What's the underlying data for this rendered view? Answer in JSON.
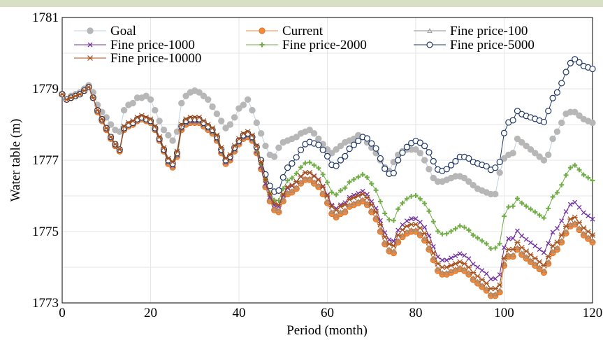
{
  "chart_data": {
    "type": "line",
    "title": "",
    "xlabel": "Period (month)",
    "ylabel": "Water table (m)",
    "xlim": [
      0,
      120
    ],
    "ylim": [
      1773,
      1781
    ],
    "xticks": [
      0,
      20,
      40,
      60,
      80,
      100,
      120
    ],
    "yticks": [
      1773,
      1775,
      1777,
      1779,
      1781
    ],
    "grid": true,
    "legend_position": "top",
    "colors": {
      "Goal": "#b7b7b7",
      "Current": "#f08a3c",
      "Fine price-100": "#8c8c8c",
      "Fine price-1000": "#7030a0",
      "Fine price-2000": "#70ad47",
      "Fine price-5000": "#1f3864",
      "Fine price-10000": "#a5501c"
    },
    "x_step": 1,
    "series": [
      {
        "name": "Goal",
        "values": [
          1778.85,
          1778.7,
          1778.8,
          1778.85,
          1778.9,
          1779.0,
          1779.1,
          1778.9,
          1778.55,
          1778.35,
          1778.2,
          1778.0,
          1777.85,
          1777.8,
          1778.4,
          1778.55,
          1778.6,
          1778.75,
          1778.75,
          1778.8,
          1778.7,
          1778.4,
          1778.1,
          1777.85,
          1777.7,
          1777.55,
          1777.8,
          1778.6,
          1778.8,
          1778.9,
          1778.95,
          1778.9,
          1778.8,
          1778.7,
          1778.5,
          1778.3,
          1778.1,
          1777.9,
          1778.0,
          1778.2,
          1778.45,
          1778.55,
          1778.7,
          1778.4,
          1778.05,
          1777.75,
          1777.4,
          1777.15,
          1777.1,
          1777.35,
          1777.5,
          1777.55,
          1777.6,
          1777.65,
          1777.75,
          1777.8,
          1777.85,
          1777.75,
          1777.6,
          1777.45,
          1777.3,
          1777.2,
          1777.3,
          1777.4,
          1777.5,
          1777.55,
          1777.6,
          1777.7,
          1777.65,
          1777.5,
          1777.35,
          1777.2,
          1777.0,
          1776.8,
          1776.7,
          1776.95,
          1777.15,
          1777.25,
          1777.3,
          1777.3,
          1777.3,
          1777.2,
          1777.0,
          1776.75,
          1776.5,
          1776.4,
          1776.4,
          1776.45,
          1776.5,
          1776.55,
          1776.55,
          1776.5,
          1776.4,
          1776.3,
          1776.2,
          1776.15,
          1776.1,
          1776.05,
          1776.05,
          1776.65,
          1777.05,
          1777.15,
          1777.2,
          1777.6,
          1777.5,
          1777.4,
          1777.3,
          1777.2,
          1777.1,
          1777.0,
          1777.15,
          1777.6,
          1777.8,
          1778.05,
          1778.3,
          1778.35,
          1778.35,
          1778.25,
          1778.15,
          1778.1,
          1778.05
        ]
      },
      {
        "name": "Current",
        "values": [
          1778.85,
          1778.7,
          1778.75,
          1778.8,
          1778.85,
          1778.95,
          1779.05,
          1778.75,
          1778.35,
          1778.1,
          1777.85,
          1777.6,
          1777.4,
          1777.25,
          1777.85,
          1777.95,
          1778.0,
          1778.1,
          1778.15,
          1778.1,
          1778.05,
          1777.85,
          1777.55,
          1777.25,
          1776.9,
          1776.8,
          1777.1,
          1777.85,
          1778.0,
          1778.05,
          1778.05,
          1778.05,
          1777.95,
          1777.85,
          1777.75,
          1777.55,
          1777.2,
          1776.9,
          1777.0,
          1777.25,
          1777.45,
          1777.6,
          1777.65,
          1777.55,
          1777.2,
          1776.75,
          1776.25,
          1775.85,
          1775.6,
          1775.55,
          1775.85,
          1776.05,
          1776.1,
          1776.2,
          1776.35,
          1776.45,
          1776.45,
          1776.35,
          1776.25,
          1776.05,
          1775.8,
          1775.5,
          1775.4,
          1775.5,
          1775.55,
          1775.7,
          1775.75,
          1775.8,
          1775.85,
          1775.75,
          1775.55,
          1775.35,
          1775.0,
          1774.65,
          1774.45,
          1774.4,
          1774.7,
          1774.85,
          1774.95,
          1775.0,
          1775.0,
          1774.9,
          1774.75,
          1774.5,
          1774.2,
          1773.9,
          1773.8,
          1773.8,
          1773.85,
          1773.9,
          1773.95,
          1773.9,
          1773.8,
          1773.65,
          1773.55,
          1773.45,
          1773.35,
          1773.2,
          1773.2,
          1773.3,
          1774.05,
          1774.3,
          1774.3,
          1774.5,
          1774.35,
          1774.25,
          1774.15,
          1774.05,
          1773.95,
          1773.85,
          1774.1,
          1774.4,
          1774.5,
          1774.7,
          1774.95,
          1775.15,
          1775.2,
          1775.05,
          1774.9,
          1774.8,
          1774.7
        ]
      },
      {
        "name": "Fine price-100",
        "values": [
          1778.85,
          1778.7,
          1778.75,
          1778.8,
          1778.85,
          1778.95,
          1779.05,
          1778.75,
          1778.37,
          1778.12,
          1777.87,
          1777.62,
          1777.42,
          1777.27,
          1777.87,
          1777.97,
          1778.02,
          1778.12,
          1778.17,
          1778.12,
          1778.07,
          1777.87,
          1777.57,
          1777.27,
          1776.93,
          1776.83,
          1777.13,
          1777.88,
          1778.03,
          1778.08,
          1778.08,
          1778.08,
          1777.98,
          1777.88,
          1777.78,
          1777.58,
          1777.23,
          1776.93,
          1777.03,
          1777.28,
          1777.48,
          1777.63,
          1777.68,
          1777.58,
          1777.23,
          1776.79,
          1776.29,
          1775.89,
          1775.64,
          1775.59,
          1775.89,
          1776.09,
          1776.14,
          1776.24,
          1776.39,
          1776.49,
          1776.49,
          1776.39,
          1776.29,
          1776.09,
          1775.84,
          1775.55,
          1775.45,
          1775.55,
          1775.6,
          1775.75,
          1775.8,
          1775.85,
          1775.9,
          1775.8,
          1775.6,
          1775.4,
          1775.05,
          1774.7,
          1774.5,
          1774.45,
          1774.75,
          1774.9,
          1775.0,
          1775.05,
          1775.05,
          1774.95,
          1774.8,
          1774.55,
          1774.25,
          1773.95,
          1773.85,
          1773.85,
          1773.9,
          1773.95,
          1774.0,
          1773.95,
          1773.85,
          1773.7,
          1773.6,
          1773.5,
          1773.4,
          1773.25,
          1773.25,
          1773.35,
          1774.1,
          1774.35,
          1774.35,
          1774.55,
          1774.4,
          1774.3,
          1774.2,
          1774.1,
          1774.0,
          1773.9,
          1774.15,
          1774.45,
          1774.55,
          1774.75,
          1775.0,
          1775.2,
          1775.25,
          1775.1,
          1774.95,
          1774.85,
          1774.75
        ]
      },
      {
        "name": "Fine price-1000",
        "values": [
          1778.85,
          1778.7,
          1778.75,
          1778.8,
          1778.85,
          1778.95,
          1779.05,
          1778.75,
          1778.38,
          1778.13,
          1777.88,
          1777.63,
          1777.43,
          1777.28,
          1777.88,
          1777.98,
          1778.03,
          1778.13,
          1778.18,
          1778.13,
          1778.08,
          1777.88,
          1777.58,
          1777.28,
          1776.95,
          1776.85,
          1777.15,
          1777.9,
          1778.05,
          1778.1,
          1778.1,
          1778.1,
          1778.0,
          1777.9,
          1777.8,
          1777.6,
          1777.25,
          1776.95,
          1777.05,
          1777.3,
          1777.5,
          1777.65,
          1777.7,
          1777.6,
          1777.26,
          1776.83,
          1776.35,
          1775.97,
          1775.74,
          1775.7,
          1776.01,
          1776.22,
          1776.28,
          1776.39,
          1776.54,
          1776.65,
          1776.65,
          1776.56,
          1776.46,
          1776.27,
          1776.03,
          1775.74,
          1775.65,
          1775.75,
          1775.81,
          1775.96,
          1776.02,
          1776.07,
          1776.13,
          1776.04,
          1775.84,
          1775.65,
          1775.31,
          1774.97,
          1774.77,
          1774.73,
          1775.04,
          1775.19,
          1775.3,
          1775.36,
          1775.36,
          1775.26,
          1775.12,
          1774.88,
          1774.58,
          1774.29,
          1774.2,
          1774.2,
          1774.26,
          1774.32,
          1774.38,
          1774.33,
          1774.24,
          1774.09,
          1774.0,
          1773.91,
          1773.82,
          1773.67,
          1773.68,
          1773.79,
          1774.55,
          1774.8,
          1774.81,
          1775.02,
          1774.88,
          1774.78,
          1774.69,
          1774.6,
          1774.5,
          1774.41,
          1774.67,
          1774.98,
          1775.09,
          1775.3,
          1775.56,
          1775.76,
          1775.82,
          1775.68,
          1775.53,
          1775.44,
          1775.35
        ]
      },
      {
        "name": "Fine price-2000",
        "values": [
          1778.85,
          1778.7,
          1778.75,
          1778.8,
          1778.85,
          1778.95,
          1779.05,
          1778.75,
          1778.39,
          1778.14,
          1777.89,
          1777.64,
          1777.44,
          1777.29,
          1777.89,
          1777.99,
          1778.04,
          1778.14,
          1778.19,
          1778.14,
          1778.09,
          1777.89,
          1777.59,
          1777.29,
          1776.97,
          1776.87,
          1777.17,
          1777.92,
          1778.07,
          1778.12,
          1778.12,
          1778.12,
          1778.02,
          1777.92,
          1777.82,
          1777.62,
          1777.27,
          1776.97,
          1777.07,
          1777.32,
          1777.52,
          1777.67,
          1777.72,
          1777.62,
          1777.31,
          1776.9,
          1776.45,
          1776.09,
          1775.88,
          1775.87,
          1776.2,
          1776.43,
          1776.5,
          1776.63,
          1776.8,
          1776.92,
          1776.94,
          1776.86,
          1776.78,
          1776.6,
          1776.38,
          1776.1,
          1776.03,
          1776.15,
          1776.22,
          1776.39,
          1776.46,
          1776.53,
          1776.6,
          1776.52,
          1776.34,
          1776.16,
          1775.84,
          1775.51,
          1775.33,
          1775.31,
          1775.63,
          1775.8,
          1775.92,
          1775.99,
          1776.01,
          1775.92,
          1775.79,
          1775.57,
          1775.28,
          1775.01,
          1774.93,
          1774.94,
          1775.01,
          1775.08,
          1775.16,
          1775.12,
          1775.04,
          1774.9,
          1774.82,
          1774.74,
          1774.66,
          1774.52,
          1774.54,
          1774.66,
          1775.43,
          1775.69,
          1775.71,
          1775.93,
          1775.8,
          1775.71,
          1775.63,
          1775.55,
          1775.46,
          1775.38,
          1775.65,
          1775.97,
          1776.09,
          1776.31,
          1776.58,
          1776.79,
          1776.86,
          1776.73,
          1776.59,
          1776.51,
          1776.43
        ]
      },
      {
        "name": "Fine price-5000",
        "values": [
          1778.85,
          1778.7,
          1778.75,
          1778.8,
          1778.85,
          1778.95,
          1779.05,
          1778.75,
          1778.4,
          1778.15,
          1777.9,
          1777.65,
          1777.45,
          1777.3,
          1777.9,
          1778.0,
          1778.05,
          1778.15,
          1778.2,
          1778.15,
          1778.1,
          1777.9,
          1777.6,
          1777.3,
          1777.0,
          1776.9,
          1777.2,
          1777.95,
          1778.1,
          1778.15,
          1778.15,
          1778.15,
          1778.05,
          1777.95,
          1777.85,
          1777.65,
          1777.3,
          1777.0,
          1777.1,
          1777.35,
          1777.55,
          1777.7,
          1777.75,
          1777.65,
          1777.37,
          1777.0,
          1776.6,
          1776.28,
          1776.12,
          1776.15,
          1776.52,
          1776.79,
          1776.91,
          1777.08,
          1777.29,
          1777.45,
          1777.51,
          1777.47,
          1777.43,
          1777.29,
          1777.11,
          1776.87,
          1776.84,
          1777.0,
          1777.11,
          1777.32,
          1777.43,
          1777.54,
          1777.65,
          1777.61,
          1777.47,
          1777.33,
          1777.05,
          1776.76,
          1776.62,
          1776.64,
          1777.0,
          1777.21,
          1777.37,
          1777.48,
          1777.54,
          1777.49,
          1777.4,
          1777.22,
          1776.97,
          1776.74,
          1776.7,
          1776.75,
          1776.86,
          1776.97,
          1777.09,
          1777.09,
          1777.05,
          1776.95,
          1776.91,
          1776.87,
          1776.83,
          1776.73,
          1776.79,
          1776.95,
          1777.76,
          1778.06,
          1778.12,
          1778.38,
          1778.29,
          1778.24,
          1778.2,
          1778.16,
          1778.11,
          1778.07,
          1778.38,
          1778.74,
          1778.9,
          1779.16,
          1779.47,
          1779.72,
          1779.83,
          1779.74,
          1779.64,
          1779.6,
          1779.56
        ]
      },
      {
        "name": "Fine price-10000",
        "values": [
          1778.85,
          1778.7,
          1778.75,
          1778.8,
          1778.85,
          1778.95,
          1779.05,
          1778.75,
          1778.4,
          1778.15,
          1777.9,
          1777.65,
          1777.45,
          1777.3,
          1777.95,
          1778.05,
          1778.1,
          1778.2,
          1778.25,
          1778.2,
          1778.15,
          1777.95,
          1777.65,
          1777.35,
          1777.05,
          1776.95,
          1777.25,
          1778.0,
          1778.15,
          1778.2,
          1778.2,
          1778.2,
          1778.1,
          1778.0,
          1777.9,
          1777.7,
          1777.35,
          1777.05,
          1777.15,
          1777.4,
          1777.6,
          1777.75,
          1777.8,
          1777.7,
          1777.4,
          1776.95,
          1776.45,
          1776.05,
          1775.8,
          1775.75,
          1776.05,
          1776.25,
          1776.3,
          1776.4,
          1776.55,
          1776.65,
          1776.65,
          1776.55,
          1776.45,
          1776.25,
          1776.0,
          1775.7,
          1775.6,
          1775.7,
          1775.75,
          1775.9,
          1775.95,
          1776.0,
          1776.05,
          1775.95,
          1775.75,
          1775.55,
          1775.2,
          1774.85,
          1774.65,
          1774.6,
          1774.9,
          1775.05,
          1775.15,
          1775.2,
          1775.2,
          1775.1,
          1774.95,
          1774.7,
          1774.4,
          1774.1,
          1774.0,
          1774.0,
          1774.05,
          1774.1,
          1774.15,
          1774.1,
          1774.0,
          1773.85,
          1773.75,
          1773.65,
          1773.55,
          1773.4,
          1773.4,
          1773.5,
          1774.25,
          1774.5,
          1774.5,
          1774.7,
          1774.55,
          1774.45,
          1774.35,
          1774.25,
          1774.15,
          1774.05,
          1774.3,
          1774.6,
          1774.7,
          1774.9,
          1775.15,
          1775.35,
          1775.4,
          1775.25,
          1775.1,
          1775.0,
          1774.9
        ]
      }
    ],
    "legend": [
      "Goal",
      "Current",
      "Fine price-100",
      "Fine price-1000",
      "Fine price-2000",
      "Fine price-5000",
      "Fine price-10000"
    ]
  }
}
